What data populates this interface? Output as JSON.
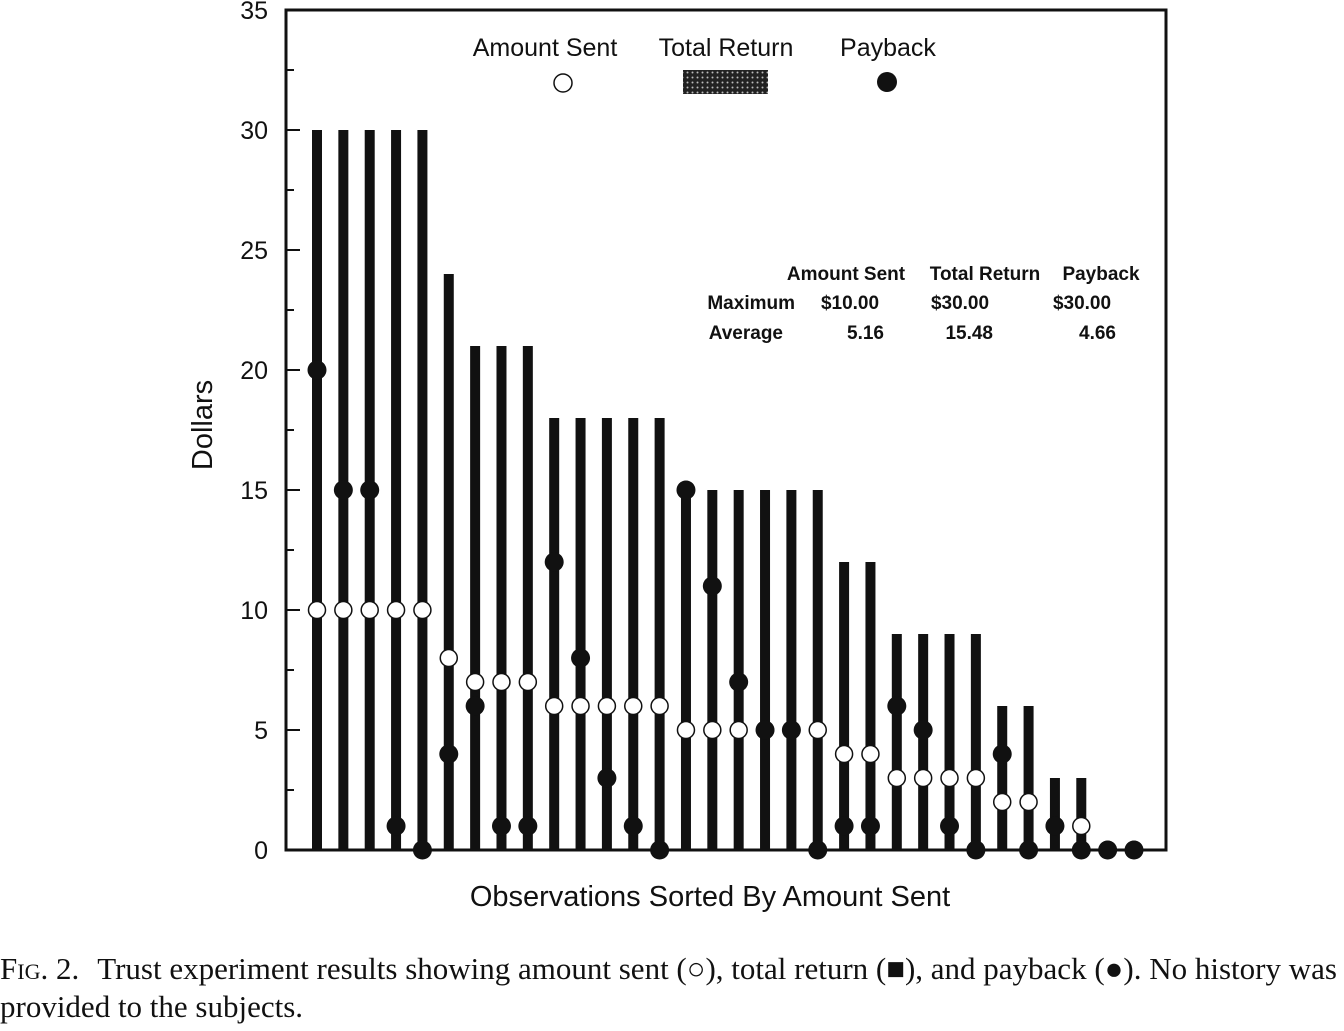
{
  "chart_data": {
    "type": "bar",
    "ylabel": "Dollars",
    "xlabel": "Observations Sorted By Amount Sent",
    "ylim": [
      0,
      35
    ],
    "yticks": [
      0,
      5,
      10,
      15,
      20,
      25,
      30,
      35
    ],
    "legend": {
      "placement": "top",
      "entries": [
        {
          "label": "Amount Sent",
          "marker": "open-circle"
        },
        {
          "label": "Total Return",
          "marker": "hatched-bar"
        },
        {
          "label": "Payback",
          "marker": "filled-circle"
        }
      ]
    },
    "summary_table": {
      "headers": [
        "",
        "Amount Sent",
        "Total Return",
        "Payback"
      ],
      "rows": [
        [
          "Maximum",
          "$10.00",
          "$30.00",
          "$30.00"
        ],
        [
          "Average",
          "5.16",
          "15.48",
          "4.66"
        ]
      ]
    },
    "observations": {
      "amount_sent": [
        10,
        10,
        10,
        10,
        10,
        8,
        7,
        7,
        7,
        6,
        6,
        6,
        6,
        6,
        5,
        5,
        5,
        5,
        5,
        5,
        4,
        4,
        3,
        3,
        3,
        3,
        2,
        2,
        1,
        1,
        0,
        0
      ],
      "total_return": [
        30,
        30,
        30,
        30,
        30,
        24,
        21,
        21,
        21,
        18,
        18,
        18,
        18,
        18,
        15,
        15,
        15,
        15,
        15,
        15,
        12,
        12,
        9,
        9,
        9,
        9,
        6,
        6,
        3,
        3,
        0,
        0
      ],
      "payback": [
        20,
        15,
        15,
        1,
        0,
        4,
        6,
        1,
        1,
        12,
        8,
        3,
        1,
        0,
        15,
        11,
        7,
        5,
        5,
        0,
        1,
        1,
        6,
        5,
        1,
        0,
        4,
        0,
        1,
        0,
        0,
        0
      ]
    }
  },
  "caption": {
    "label": "Fig. 2.",
    "text": "Trust experiment results showing amount sent (○), total return (■), and payback (●). No history was provided to the subjects."
  }
}
